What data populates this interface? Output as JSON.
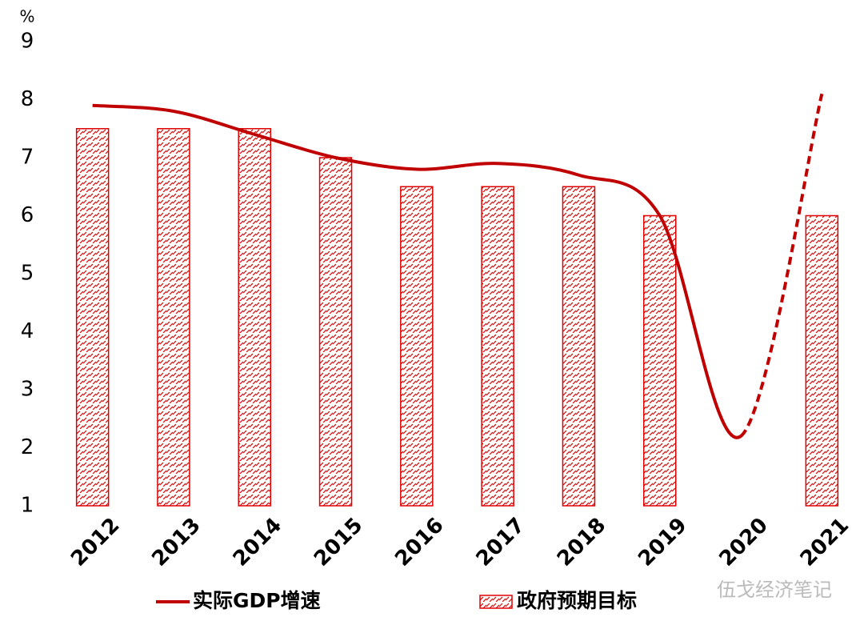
{
  "chart_data": {
    "type": "combo",
    "categories": [
      "2012",
      "2013",
      "2014",
      "2015",
      "2016",
      "2017",
      "2018",
      "2019",
      "2020",
      "2021"
    ],
    "series": [
      {
        "name": "实际GDP增速",
        "type": "line",
        "color": "#c00000",
        "last_segment_dashed": true,
        "values": [
          7.9,
          7.8,
          7.4,
          7.0,
          6.8,
          6.9,
          6.7,
          6.0,
          2.2,
          8.1
        ]
      },
      {
        "name": "政府预期目标",
        "type": "bar",
        "color": "#e00000",
        "hatched": true,
        "values": [
          7.5,
          7.5,
          7.5,
          7.0,
          6.5,
          6.5,
          6.5,
          6.0,
          null,
          6.0
        ]
      }
    ],
    "y_unit": "%",
    "ylim": [
      1,
      9
    ],
    "yticks": [
      1,
      2,
      3,
      4,
      5,
      6,
      7,
      8,
      9
    ],
    "watermark": "伍戈经济笔记"
  }
}
